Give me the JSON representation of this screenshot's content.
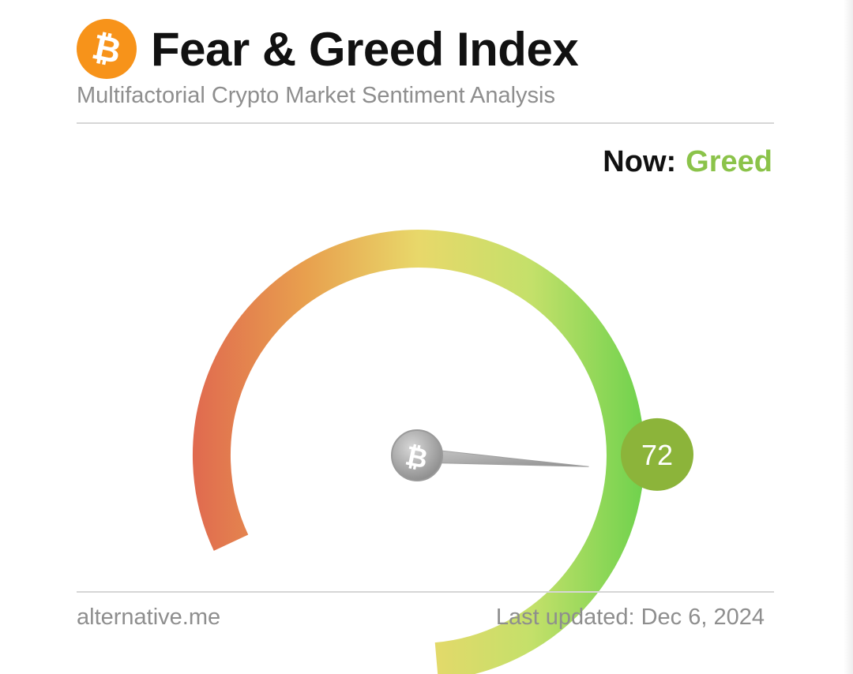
{
  "header": {
    "title": "Fear & Greed Index",
    "subtitle": "Multifactorial Crypto Market Sentiment Analysis",
    "logo_icon": "bitcoin-icon"
  },
  "status": {
    "now_label": "Now:",
    "classification": "Greed",
    "classification_color": "#8bc34a"
  },
  "gauge": {
    "value": 72,
    "value_label": "72",
    "min": 0,
    "max": 100,
    "badge_color": "#8cb43a",
    "gradient_colors": [
      "#e06a4f",
      "#e8a04e",
      "#e8d86a",
      "#c8e06a",
      "#6fd24d"
    ],
    "needle_hub_icon": "bitcoin-icon"
  },
  "footer": {
    "source": "alternative.me",
    "updated_label": "Last updated:",
    "updated_date": "Dec 6, 2024"
  }
}
